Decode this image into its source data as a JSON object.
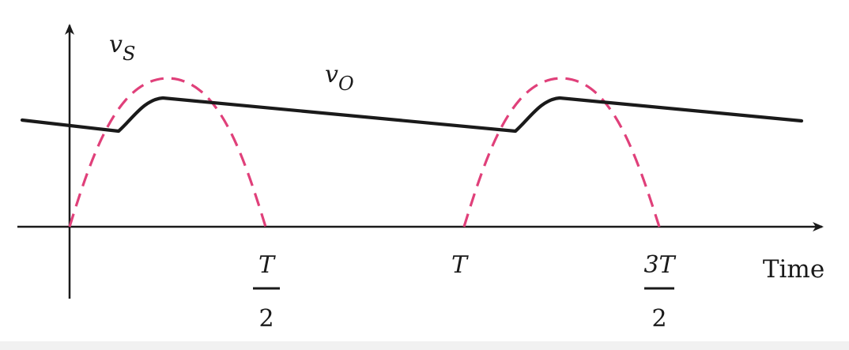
{
  "labels": {
    "vs_base": "v",
    "vs_sub": "S",
    "vo_base": "v",
    "vo_sub": "O",
    "x_axis": "Time",
    "tick_half_num": "T",
    "tick_half_den": "2",
    "tick_full": "T",
    "tick_three_half_num": "3T",
    "tick_three_half_den": "2"
  },
  "colors": {
    "axis": "#1a1a1a",
    "output_curve": "#1a1a1a",
    "source_curve": "#e0407a",
    "bottom_band": "#f1f1f1"
  },
  "curves": {
    "source": {
      "style": "dashed",
      "shape": "half-wave rectified sine"
    },
    "output": {
      "style": "solid",
      "shape": "peak detector ripple"
    }
  }
}
